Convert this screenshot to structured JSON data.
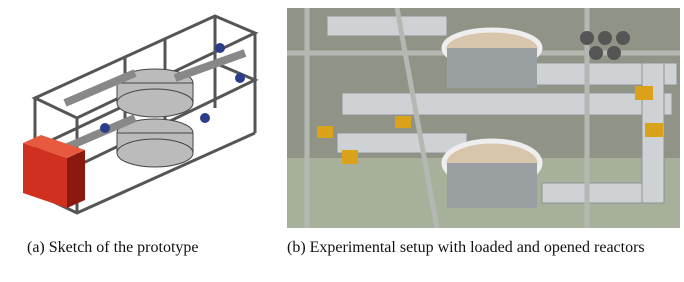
{
  "figure": {
    "subfigures": [
      {
        "caption": "(a) Sketch of the prototype"
      },
      {
        "caption": "(b) Experimental setup with loaded and opened reactors"
      }
    ]
  }
}
